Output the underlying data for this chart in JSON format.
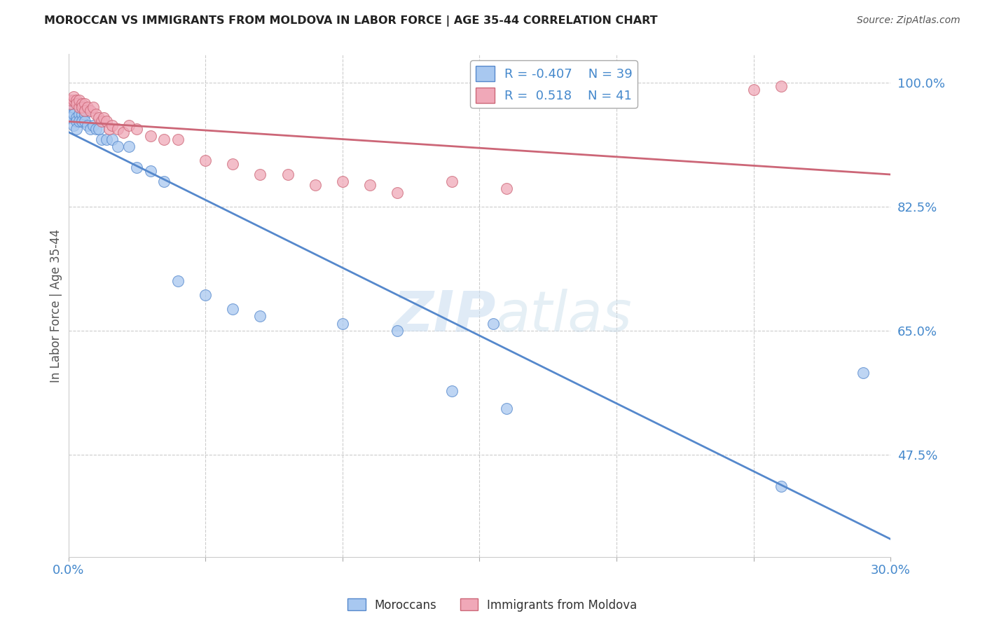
{
  "title": "MOROCCAN VS IMMIGRANTS FROM MOLDOVA IN LABOR FORCE | AGE 35-44 CORRELATION CHART",
  "source_text": "Source: ZipAtlas.com",
  "ylabel": "In Labor Force | Age 35-44",
  "xlim": [
    0.0,
    0.3
  ],
  "ylim": [
    0.33,
    1.04
  ],
  "xticks": [
    0.0,
    0.05,
    0.1,
    0.15,
    0.2,
    0.25,
    0.3
  ],
  "xticklabels": [
    "0.0%",
    "",
    "",
    "",
    "",
    "",
    "30.0%"
  ],
  "yticks_right": [
    1.0,
    0.825,
    0.65,
    0.475
  ],
  "yticklabels_right": [
    "100.0%",
    "82.5%",
    "65.0%",
    "47.5%"
  ],
  "blue_color": "#A8C8F0",
  "pink_color": "#F0A8B8",
  "blue_line_color": "#5588CC",
  "pink_line_color": "#CC6677",
  "legend_R_blue": "-0.407",
  "legend_N_blue": "39",
  "legend_R_pink": "0.518",
  "legend_N_pink": "41",
  "legend_label_blue": "Moroccans",
  "legend_label_pink": "Immigrants from Moldova",
  "watermark_zip": "ZIP",
  "watermark_atlas": "atlas",
  "grid_color": "#CCCCCC",
  "background_color": "#FFFFFF",
  "blue_x": [
    0.001,
    0.001,
    0.001,
    0.002,
    0.002,
    0.002,
    0.003,
    0.003,
    0.003,
    0.004,
    0.004,
    0.005,
    0.005,
    0.006,
    0.006,
    0.007,
    0.008,
    0.009,
    0.01,
    0.011,
    0.012,
    0.014,
    0.016,
    0.018,
    0.022,
    0.025,
    0.03,
    0.035,
    0.04,
    0.05,
    0.06,
    0.07,
    0.1,
    0.14,
    0.16,
    0.26,
    0.29,
    0.155,
    0.12
  ],
  "blue_y": [
    0.96,
    0.955,
    0.95,
    0.965,
    0.955,
    0.94,
    0.95,
    0.945,
    0.935,
    0.955,
    0.945,
    0.955,
    0.945,
    0.955,
    0.945,
    0.94,
    0.935,
    0.94,
    0.935,
    0.935,
    0.92,
    0.92,
    0.92,
    0.91,
    0.91,
    0.88,
    0.875,
    0.86,
    0.72,
    0.7,
    0.68,
    0.67,
    0.66,
    0.565,
    0.54,
    0.43,
    0.59,
    0.66,
    0.65
  ],
  "pink_x": [
    0.001,
    0.001,
    0.002,
    0.002,
    0.003,
    0.003,
    0.004,
    0.004,
    0.005,
    0.005,
    0.006,
    0.006,
    0.007,
    0.008,
    0.009,
    0.01,
    0.011,
    0.012,
    0.013,
    0.014,
    0.015,
    0.016,
    0.018,
    0.02,
    0.022,
    0.025,
    0.03,
    0.035,
    0.04,
    0.05,
    0.06,
    0.07,
    0.08,
    0.09,
    0.1,
    0.11,
    0.12,
    0.14,
    0.16,
    0.26,
    0.25
  ],
  "pink_y": [
    0.97,
    0.975,
    0.975,
    0.98,
    0.975,
    0.97,
    0.965,
    0.975,
    0.97,
    0.965,
    0.97,
    0.96,
    0.965,
    0.96,
    0.965,
    0.955,
    0.95,
    0.945,
    0.95,
    0.945,
    0.935,
    0.94,
    0.935,
    0.93,
    0.94,
    0.935,
    0.925,
    0.92,
    0.92,
    0.89,
    0.885,
    0.87,
    0.87,
    0.855,
    0.86,
    0.855,
    0.845,
    0.86,
    0.85,
    0.995,
    0.99
  ]
}
